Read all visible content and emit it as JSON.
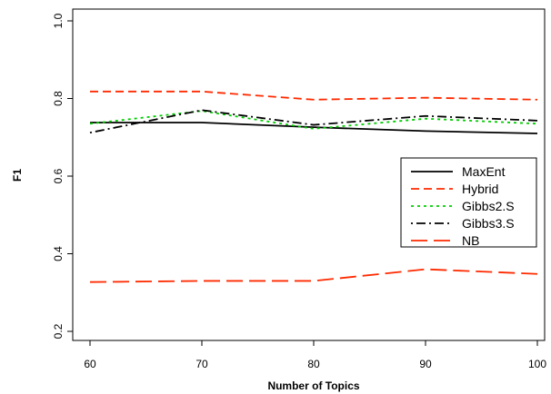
{
  "chart_data": {
    "type": "line",
    "title": "",
    "xlabel": "Number of Topics",
    "ylabel": "F1",
    "x": [
      60,
      70,
      80,
      90,
      100
    ],
    "xlim": [
      60,
      100
    ],
    "ylim": [
      0.2,
      1.0
    ],
    "xticks": [
      "60",
      "70",
      "80",
      "90",
      "100"
    ],
    "yticks": [
      "0.2",
      "0.4",
      "0.6",
      "0.8",
      "1.0"
    ],
    "grid": false,
    "legend_position": "right",
    "series": [
      {
        "name": "MaxEnt",
        "values": [
          0.738,
          0.738,
          0.726,
          0.716,
          0.71
        ],
        "color": "#000000",
        "dash": "solid"
      },
      {
        "name": "Hybrid",
        "values": [
          0.818,
          0.818,
          0.797,
          0.802,
          0.797
        ],
        "color": "#ff2a00",
        "dash": "dashed"
      },
      {
        "name": "Gibbs2.S",
        "values": [
          0.735,
          0.768,
          0.722,
          0.748,
          0.735
        ],
        "color": "#00cc00",
        "dash": "dotted"
      },
      {
        "name": "Gibbs3.S",
        "values": [
          0.712,
          0.77,
          0.732,
          0.755,
          0.743
        ],
        "color": "#000000",
        "dash": "dotdash"
      },
      {
        "name": "NB",
        "values": [
          0.327,
          0.33,
          0.33,
          0.36,
          0.348
        ],
        "color": "#ff2a00",
        "dash": "longdash"
      }
    ]
  }
}
